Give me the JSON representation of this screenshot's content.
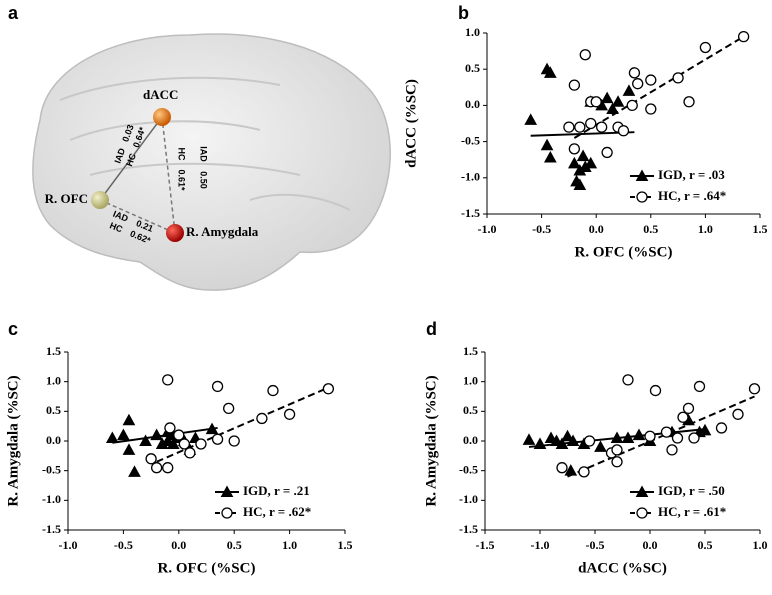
{
  "panel_a": {
    "label": "a",
    "nodes": [
      {
        "label": "dACC"
      },
      {
        "label": "R. OFC"
      },
      {
        "label": "R. Amygdala"
      }
    ],
    "edges": [
      {
        "group1": "IAD",
        "value1": "0.03",
        "group2": "HC",
        "value2": "0.64*"
      },
      {
        "group1": "IAD",
        "value1": "0.50",
        "group2": "HC",
        "value2": "0.61*"
      },
      {
        "group1": "IAD",
        "value1": "0.21",
        "group2": "HC",
        "value2": "0.62*"
      }
    ]
  },
  "chart_data": [
    {
      "type": "scatter",
      "panel": "b",
      "xlabel": "R. OFC (%SC)",
      "ylabel": "dACC (%SC)",
      "xlim": [
        -1,
        1.5
      ],
      "xticks": [
        {
          "value": -1,
          "label": "-1.0"
        },
        {
          "value": -0.5,
          "label": "-0.5"
        },
        {
          "value": 0,
          "label": "0.0"
        },
        {
          "value": 0.5,
          "label": "0.5"
        },
        {
          "value": 1,
          "label": "1.0"
        },
        {
          "value": 1.5,
          "label": "1.5"
        }
      ],
      "ylim": [
        -1.5,
        1
      ],
      "yticks": [
        {
          "value": -1.5,
          "label": "-1.5"
        },
        {
          "value": -1,
          "label": "-1.0"
        },
        {
          "value": -0.5,
          "label": "-0.5"
        },
        {
          "value": 0,
          "label": "0.0"
        },
        {
          "value": 0.5,
          "label": "0.5"
        },
        {
          "value": 1,
          "label": "1.0"
        }
      ],
      "legend": "lower right",
      "series": [
        {
          "name": "IGD, r = .03",
          "marker": "triangle",
          "line": "solid",
          "color": "#000000",
          "x": [
            -0.45,
            -0.42,
            -0.6,
            -0.45,
            -0.42,
            -0.2,
            -0.18,
            -0.15,
            -0.1,
            -0.05,
            -0.15,
            -0.12,
            0.05,
            0.1,
            0.2,
            0.3,
            0.15,
            -0.05
          ],
          "values": [
            0.5,
            0.45,
            -0.2,
            -0.55,
            -0.72,
            -0.8,
            -1.05,
            -1.1,
            -0.85,
            -0.8,
            -0.9,
            -0.7,
            0.0,
            0.1,
            0.05,
            0.2,
            -0.05,
            0.05
          ],
          "fit_x": [
            -0.6,
            0.35
          ],
          "fit_y": [
            -0.42,
            -0.37
          ]
        },
        {
          "name": "HC, r = .64*",
          "marker": "circle",
          "line": "dashed",
          "color": "#000000",
          "x": [
            -0.1,
            -0.2,
            -0.05,
            -0.25,
            -0.15,
            -0.2,
            -0.05,
            0.05,
            0.1,
            0.2,
            0.25,
            0.33,
            0.35,
            0.38,
            0.5,
            0.5,
            0.75,
            0.85,
            1.0,
            1.35,
            0.0
          ],
          "values": [
            0.7,
            0.28,
            0.05,
            -0.3,
            -0.3,
            -0.6,
            -0.25,
            -0.3,
            -0.65,
            -0.3,
            -0.35,
            0.0,
            0.45,
            0.3,
            0.35,
            -0.05,
            0.38,
            0.05,
            0.8,
            0.95,
            0.05
          ],
          "fit_x": [
            -0.2,
            1.35
          ],
          "fit_y": [
            -0.45,
            0.95
          ]
        }
      ]
    },
    {
      "type": "scatter",
      "panel": "c",
      "xlabel": "R. OFC (%SC)",
      "ylabel": "R. Amygdala (%SC)",
      "xlim": [
        -1,
        1.5
      ],
      "xticks": [
        {
          "value": -1,
          "label": "-1.0"
        },
        {
          "value": -0.5,
          "label": "-0.5"
        },
        {
          "value": 0,
          "label": "0.0"
        },
        {
          "value": 0.5,
          "label": "0.5"
        },
        {
          "value": 1,
          "label": "1.0"
        },
        {
          "value": 1.5,
          "label": "1.5"
        }
      ],
      "ylim": [
        -1.5,
        1.5
      ],
      "yticks": [
        {
          "value": -1.5,
          "label": "-1.5"
        },
        {
          "value": -1,
          "label": "-1.0"
        },
        {
          "value": -0.5,
          "label": "-0.5"
        },
        {
          "value": 0,
          "label": "0.0"
        },
        {
          "value": 0.5,
          "label": "0.5"
        },
        {
          "value": 1,
          "label": "1.0"
        },
        {
          "value": 1.5,
          "label": "1.5"
        }
      ],
      "legend": "lower right",
      "series": [
        {
          "name": "IGD, r = .21",
          "marker": "triangle",
          "line": "solid",
          "color": "#000000",
          "x": [
            -0.6,
            -0.5,
            -0.45,
            -0.45,
            -0.4,
            -0.3,
            -0.2,
            -0.15,
            -0.1,
            -0.05,
            0.0,
            0.05,
            0.1,
            -0.1,
            0.3,
            0.15,
            -0.05
          ],
          "values": [
            0.05,
            0.1,
            0.35,
            -0.15,
            -0.52,
            0.0,
            0.1,
            -0.05,
            0.0,
            0.1,
            0.05,
            0.0,
            -0.15,
            0.15,
            0.2,
            0.05,
            -0.05
          ],
          "fit_x": [
            -0.6,
            0.35
          ],
          "fit_y": [
            -0.03,
            0.22
          ]
        },
        {
          "name": "HC, r = .62*",
          "marker": "circle",
          "line": "dashed",
          "color": "#000000",
          "x": [
            -0.1,
            -0.25,
            -0.2,
            -0.1,
            -0.08,
            0.0,
            0.05,
            0.1,
            0.2,
            0.35,
            0.35,
            0.45,
            0.5,
            0.75,
            0.85,
            1.0,
            1.35
          ],
          "values": [
            1.03,
            -0.3,
            -0.45,
            -0.45,
            0.22,
            0.1,
            -0.05,
            -0.2,
            -0.05,
            0.92,
            0.03,
            0.55,
            0.0,
            0.38,
            0.85,
            0.45,
            0.88
          ],
          "fit_x": [
            -0.2,
            1.35
          ],
          "fit_y": [
            -0.35,
            0.9
          ]
        }
      ]
    },
    {
      "type": "scatter",
      "panel": "d",
      "xlabel": "dACC (%SC)",
      "ylabel": "R. Amygdala (%SC)",
      "xlim": [
        -1.5,
        1
      ],
      "xticks": [
        {
          "value": -1.5,
          "label": "-1.5"
        },
        {
          "value": -1,
          "label": "-1.0"
        },
        {
          "value": -0.5,
          "label": "-0.5"
        },
        {
          "value": 0,
          "label": "0.0"
        },
        {
          "value": 0.5,
          "label": "0.5"
        },
        {
          "value": 1,
          "label": "1.0"
        }
      ],
      "ylim": [
        -1.5,
        1.5
      ],
      "yticks": [
        {
          "value": -1.5,
          "label": "-1.5"
        },
        {
          "value": -1,
          "label": "-1.0"
        },
        {
          "value": -0.5,
          "label": "-0.5"
        },
        {
          "value": 0,
          "label": "0.0"
        },
        {
          "value": 0.5,
          "label": "0.5"
        },
        {
          "value": 1,
          "label": "1.0"
        },
        {
          "value": 1.5,
          "label": "1.5"
        }
      ],
      "legend": "lower right",
      "series": [
        {
          "name": "IGD, r = .50",
          "marker": "triangle",
          "line": "solid",
          "color": "#000000",
          "x": [
            -1.1,
            -1.0,
            -0.9,
            -0.85,
            -0.8,
            -0.75,
            -0.72,
            -0.7,
            -0.6,
            -0.45,
            -0.3,
            -0.2,
            -0.1,
            0.0,
            0.2,
            0.35,
            0.45,
            0.5
          ],
          "values": [
            0.02,
            -0.05,
            0.05,
            0.0,
            -0.05,
            0.08,
            -0.5,
            0.0,
            -0.05,
            -0.1,
            0.05,
            0.05,
            0.1,
            0.0,
            0.15,
            0.35,
            0.15,
            0.18
          ],
          "fit_x": [
            -1.1,
            0.5
          ],
          "fit_y": [
            -0.1,
            0.2
          ]
        },
        {
          "name": "HC, r = .61*",
          "marker": "circle",
          "line": "dashed",
          "color": "#000000",
          "x": [
            -0.8,
            -0.6,
            -0.55,
            -0.35,
            -0.3,
            -0.3,
            -0.2,
            0.0,
            0.05,
            0.15,
            0.2,
            0.35,
            0.4,
            0.45,
            0.65,
            0.8,
            0.95,
            0.25,
            0.3
          ],
          "values": [
            -0.45,
            -0.52,
            0.0,
            -0.2,
            -0.15,
            -0.35,
            1.03,
            0.08,
            0.85,
            0.15,
            -0.15,
            0.55,
            0.05,
            0.92,
            0.22,
            0.45,
            0.88,
            0.05,
            0.4
          ],
          "fit_x": [
            -0.75,
            0.95
          ],
          "fit_y": [
            -0.6,
            0.75
          ]
        }
      ]
    }
  ]
}
